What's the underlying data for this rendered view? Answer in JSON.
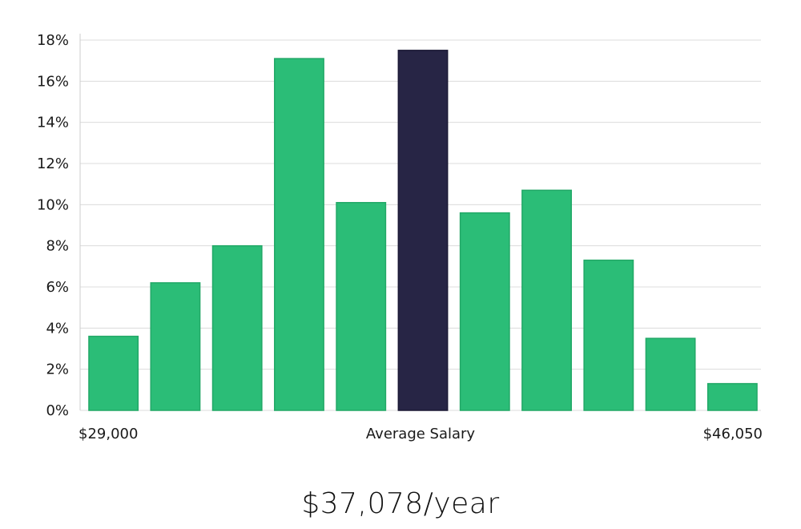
{
  "colors": {
    "bar": "#2bbd77",
    "bar_stroke": "#22a867",
    "highlight": "#272545",
    "grid": "#dcdcdc",
    "axis": "#cccccc",
    "text": "#1a1a1a"
  },
  "chart_data": {
    "type": "bar",
    "title": "",
    "xlabel": "Average Salary",
    "ylabel": "",
    "x_start_label": "$29,000",
    "x_end_label": "$46,050",
    "ylim": [
      0,
      18
    ],
    "yticks": [
      0,
      2,
      4,
      6,
      8,
      10,
      12,
      14,
      16,
      18
    ],
    "ytick_suffix": "%",
    "grid": true,
    "highlight_index": 5,
    "values": [
      3.6,
      6.2,
      8.0,
      17.1,
      10.1,
      17.5,
      9.6,
      10.7,
      7.3,
      3.5,
      1.3
    ]
  },
  "summary": {
    "average_salary": "$37,078/year"
  }
}
